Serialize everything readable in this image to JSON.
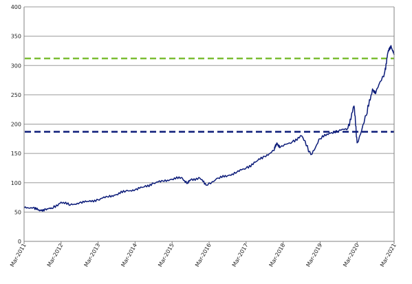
{
  "chart_data": {
    "type": "line",
    "title": "",
    "xlabel": "",
    "ylabel": "",
    "ylim": [
      0,
      400
    ],
    "yticks": [
      0,
      50,
      100,
      150,
      200,
      250,
      300,
      350,
      400
    ],
    "ytick_labels": [
      "0",
      "50",
      "100",
      "150",
      "200",
      "250",
      "300",
      "350",
      "400"
    ],
    "xlim": [
      "2011-03",
      "2021-03"
    ],
    "xtick_labels": [
      "Mar-2011",
      "Mar-2012",
      "Mar-2013",
      "Mar-2014",
      "Mar-2015",
      "Mar-2016",
      "Mar-2017",
      "Mar-2018",
      "Mar-2019",
      "Mar-2020",
      "Mar-2021"
    ],
    "grid": true,
    "legend": "none",
    "series": [
      {
        "color": "#0a1a78",
        "x": [
          "2011-03",
          "2011-06",
          "2011-08",
          "2011-10",
          "2011-12",
          "2012-03",
          "2012-06",
          "2012-09",
          "2012-12",
          "2013-03",
          "2013-06",
          "2013-09",
          "2013-12",
          "2014-03",
          "2014-06",
          "2014-09",
          "2014-12",
          "2015-03",
          "2015-06",
          "2015-08",
          "2015-09",
          "2015-12",
          "2016-02",
          "2016-06",
          "2016-09",
          "2016-12",
          "2017-03",
          "2017-06",
          "2017-09",
          "2017-12",
          "2018-01",
          "2018-02",
          "2018-06",
          "2018-09",
          "2018-12",
          "2019-03",
          "2019-06",
          "2019-09",
          "2019-12",
          "2020-02",
          "2020-03",
          "2020-06",
          "2020-08",
          "2020-09",
          "2020-12",
          "2021-01",
          "2021-02",
          "2021-03"
        ],
        "values": [
          57,
          58,
          52,
          55,
          56,
          67,
          62,
          66,
          68,
          71,
          76,
          80,
          86,
          88,
          93,
          99,
          103,
          106,
          109,
          99,
          105,
          108,
          96,
          108,
          112,
          118,
          125,
          135,
          145,
          155,
          168,
          160,
          170,
          180,
          148,
          175,
          185,
          188,
          193,
          231,
          168,
          215,
          260,
          252,
          290,
          322,
          334,
          318
        ]
      }
    ],
    "reference_lines": [
      {
        "y": 312,
        "color": "#7bbd33",
        "style": "dashed"
      },
      {
        "y": 187,
        "color": "#0a1a78",
        "style": "dashed"
      }
    ]
  }
}
